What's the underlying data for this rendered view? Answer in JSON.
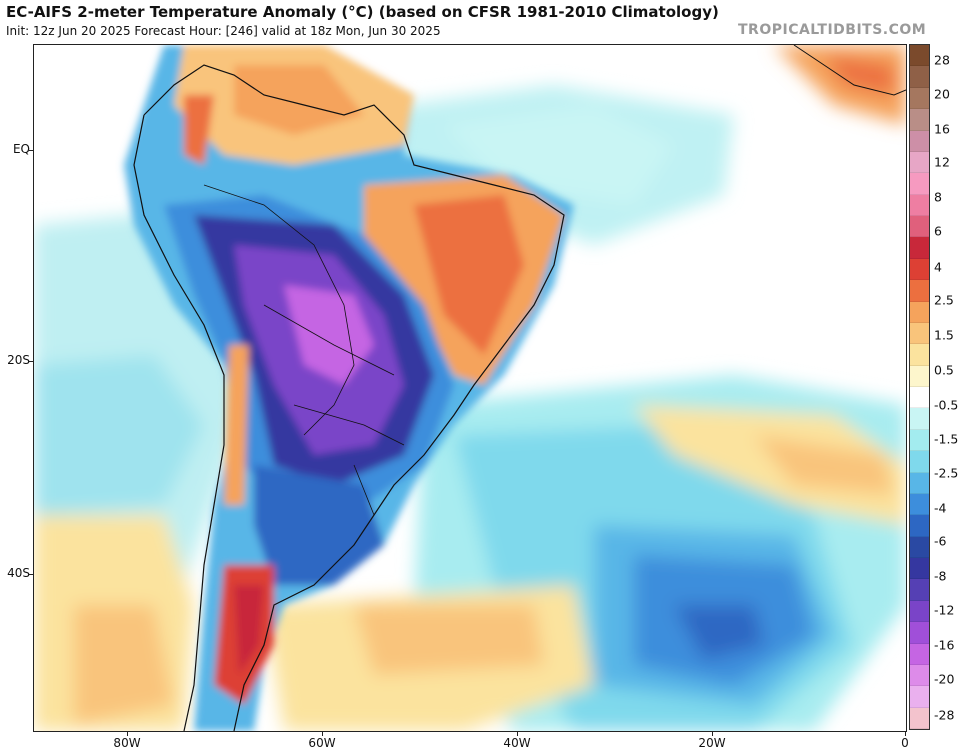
{
  "header": {
    "title": "EC-AIFS 2-meter Temperature Anomaly (°C) (based on CFSR 1981-2010 Climatology)",
    "subtitle": "Init: 12z Jun 20 2025   Forecast Hour: [246]   valid at 18z Mon, Jun 30 2025",
    "brand": "TROPICALTIDBITS.COM"
  },
  "map": {
    "lat_labels": [
      "EQ",
      "20S",
      "40S"
    ],
    "lon_labels": [
      "80W",
      "60W",
      "40W",
      "20W",
      "0"
    ]
  },
  "colorbar": {
    "colors": [
      "#7b4a2c",
      "#8f6047",
      "#a5775f",
      "#b98e87",
      "#cd8fa7",
      "#e7a6c6",
      "#f69ac0",
      "#ee7ea2",
      "#e0607c",
      "#c8283a",
      "#dd4034",
      "#ec6f3f",
      "#f5a35c",
      "#f9c47b",
      "#fbe39e",
      "#fdf6cc",
      "#ffffff",
      "#c9f5f4",
      "#a3ecef",
      "#7fd9ec",
      "#58b6e7",
      "#3d8edc",
      "#2d67c3",
      "#2a49a3",
      "#3537a0",
      "#5540b4",
      "#7a44c8",
      "#a04fd9",
      "#c565e3",
      "#dd8be9",
      "#eab0ee",
      "#f3c3cd"
    ],
    "labels": [
      "28",
      "20",
      "16",
      "12",
      "8",
      "6",
      "4",
      "2.5",
      "1.5",
      "0.5",
      "-0.5",
      "-1.5",
      "-2.5",
      "-4",
      "-6",
      "-8",
      "-12",
      "-16",
      "-20",
      "-28"
    ]
  }
}
